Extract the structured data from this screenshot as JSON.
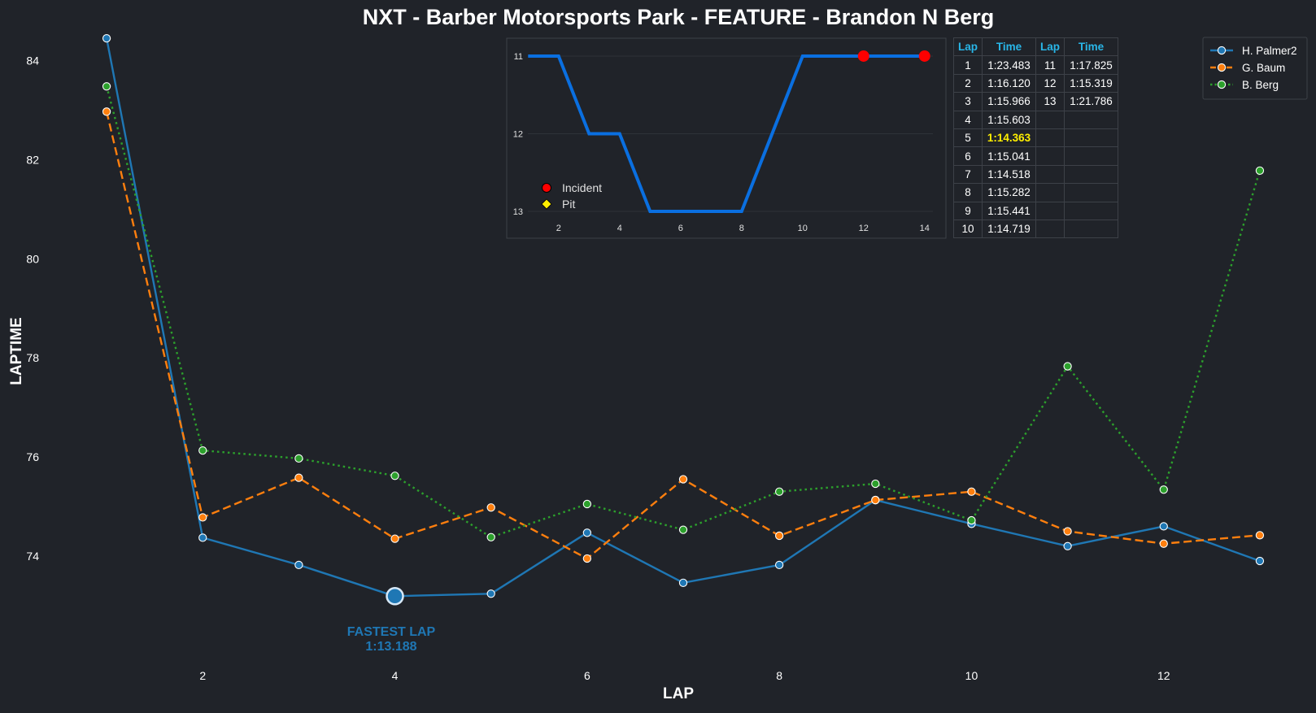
{
  "chart_data": {
    "type": "line",
    "title": "NXT - Barber Motorsports Park - FEATURE - Brandon N Berg",
    "xlabel": "LAP",
    "ylabel": "LAPTIME",
    "xticks": [
      2,
      4,
      6,
      8,
      10,
      12
    ],
    "yticks": [
      74,
      76,
      78,
      80,
      82,
      84
    ],
    "xlim": [
      0.5,
      13.5
    ],
    "ylim": [
      71.8,
      84.6
    ],
    "legend_position": "top-right",
    "series": [
      {
        "name": "H. Palmer2",
        "color": "#1f77b4",
        "style": "solid",
        "x": [
          1,
          2,
          3,
          4,
          5,
          6,
          7,
          8,
          9,
          10,
          11,
          12,
          13
        ],
        "values": [
          84.45,
          74.37,
          73.82,
          73.19,
          73.24,
          74.47,
          73.46,
          73.82,
          75.13,
          74.65,
          74.2,
          74.6,
          73.9
        ]
      },
      {
        "name": "G. Baum",
        "color": "#ff7f0e",
        "style": "dashed",
        "x": [
          1,
          2,
          3,
          4,
          5,
          6,
          7,
          8,
          9,
          10,
          11,
          12,
          13
        ],
        "values": [
          82.97,
          74.78,
          75.58,
          74.35,
          74.98,
          73.95,
          75.55,
          74.41,
          75.13,
          75.3,
          74.5,
          74.25,
          74.42
        ]
      },
      {
        "name": "B. Berg",
        "color": "#2ca02c",
        "style": "dotted",
        "x": [
          1,
          2,
          3,
          4,
          5,
          6,
          7,
          8,
          9,
          10,
          11,
          12,
          13
        ],
        "values": [
          83.48,
          76.13,
          75.97,
          75.62,
          74.38,
          75.05,
          74.53,
          75.3,
          75.46,
          74.72,
          77.83,
          75.34,
          81.78
        ]
      }
    ],
    "annotation": {
      "label": "FASTEST LAP",
      "time": "1:13.188",
      "x": 4,
      "y": 73.19,
      "color": "#1f77b4"
    },
    "inset": {
      "type": "line",
      "x": [
        1,
        2,
        3,
        4,
        5,
        6,
        7,
        8,
        9,
        10,
        11,
        12,
        13,
        14
      ],
      "values": [
        11,
        11,
        12,
        12,
        13,
        13,
        13,
        13,
        12,
        11,
        11,
        11,
        11,
        11
      ],
      "xticks": [
        2,
        4,
        6,
        8,
        10,
        12,
        14
      ],
      "yticks": [
        11,
        12,
        13
      ],
      "xlim": [
        0.3,
        14.7
      ],
      "ylim": [
        10.77,
        13.0
      ],
      "y_inverted": true,
      "line_color": "#0a6fe0",
      "incidents": [
        12,
        14
      ],
      "incident_color": "#ff0000",
      "pit_color": "#ffef00",
      "legend": [
        {
          "label": "Incident",
          "marker": "circle",
          "color": "#ff0000"
        },
        {
          "label": "Pit",
          "marker": "diamond",
          "color": "#ffef00"
        }
      ]
    },
    "table": {
      "headers": [
        "Lap",
        "Time",
        "Lap",
        "Time"
      ],
      "rows": [
        [
          "1",
          "1:23.483",
          "11",
          "1:17.825"
        ],
        [
          "2",
          "1:16.120",
          "12",
          "1:15.319"
        ],
        [
          "3",
          "1:15.966",
          "13",
          "1:21.786"
        ],
        [
          "4",
          "1:15.603",
          "",
          ""
        ],
        [
          "5",
          "1:14.363",
          "",
          ""
        ],
        [
          "6",
          "1:15.041",
          "",
          ""
        ],
        [
          "7",
          "1:14.518",
          "",
          ""
        ],
        [
          "8",
          "1:15.282",
          "",
          ""
        ],
        [
          "9",
          "1:15.441",
          "",
          ""
        ],
        [
          "10",
          "1:14.719",
          "",
          ""
        ]
      ],
      "fastest_lap": "5",
      "fastest_color": "#ffef00",
      "header_color": "#29b6e8"
    }
  }
}
